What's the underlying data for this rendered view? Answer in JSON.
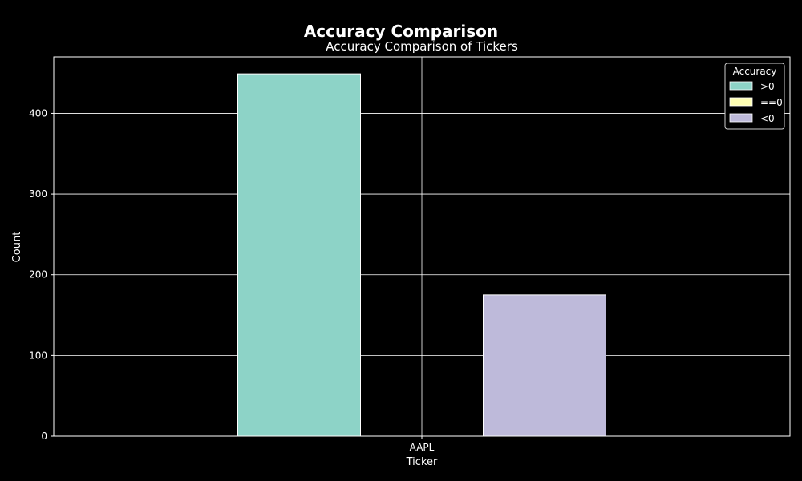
{
  "chart_data": {
    "type": "bar",
    "suptitle": "Accuracy Comparison",
    "title": "Accuracy Comparison of Tickers",
    "xlabel": "Ticker",
    "ylabel": "Count",
    "categories": [
      "AAPL"
    ],
    "ylim": [
      0,
      470
    ],
    "yticks": [
      0,
      100,
      200,
      300,
      400
    ],
    "grid": true,
    "legend": {
      "title": "Accuracy",
      "placement": "top-right"
    },
    "series": [
      {
        "name": ">0",
        "values": [
          449
        ],
        "color": "#8dd3c7"
      },
      {
        "name": "==0",
        "values": [
          0
        ],
        "color": "#ffffb3"
      },
      {
        "name": "<0",
        "values": [
          175
        ],
        "color": "#bebada"
      }
    ],
    "colors": {
      "background": "#000000",
      "foreground": "#ffffff"
    }
  }
}
